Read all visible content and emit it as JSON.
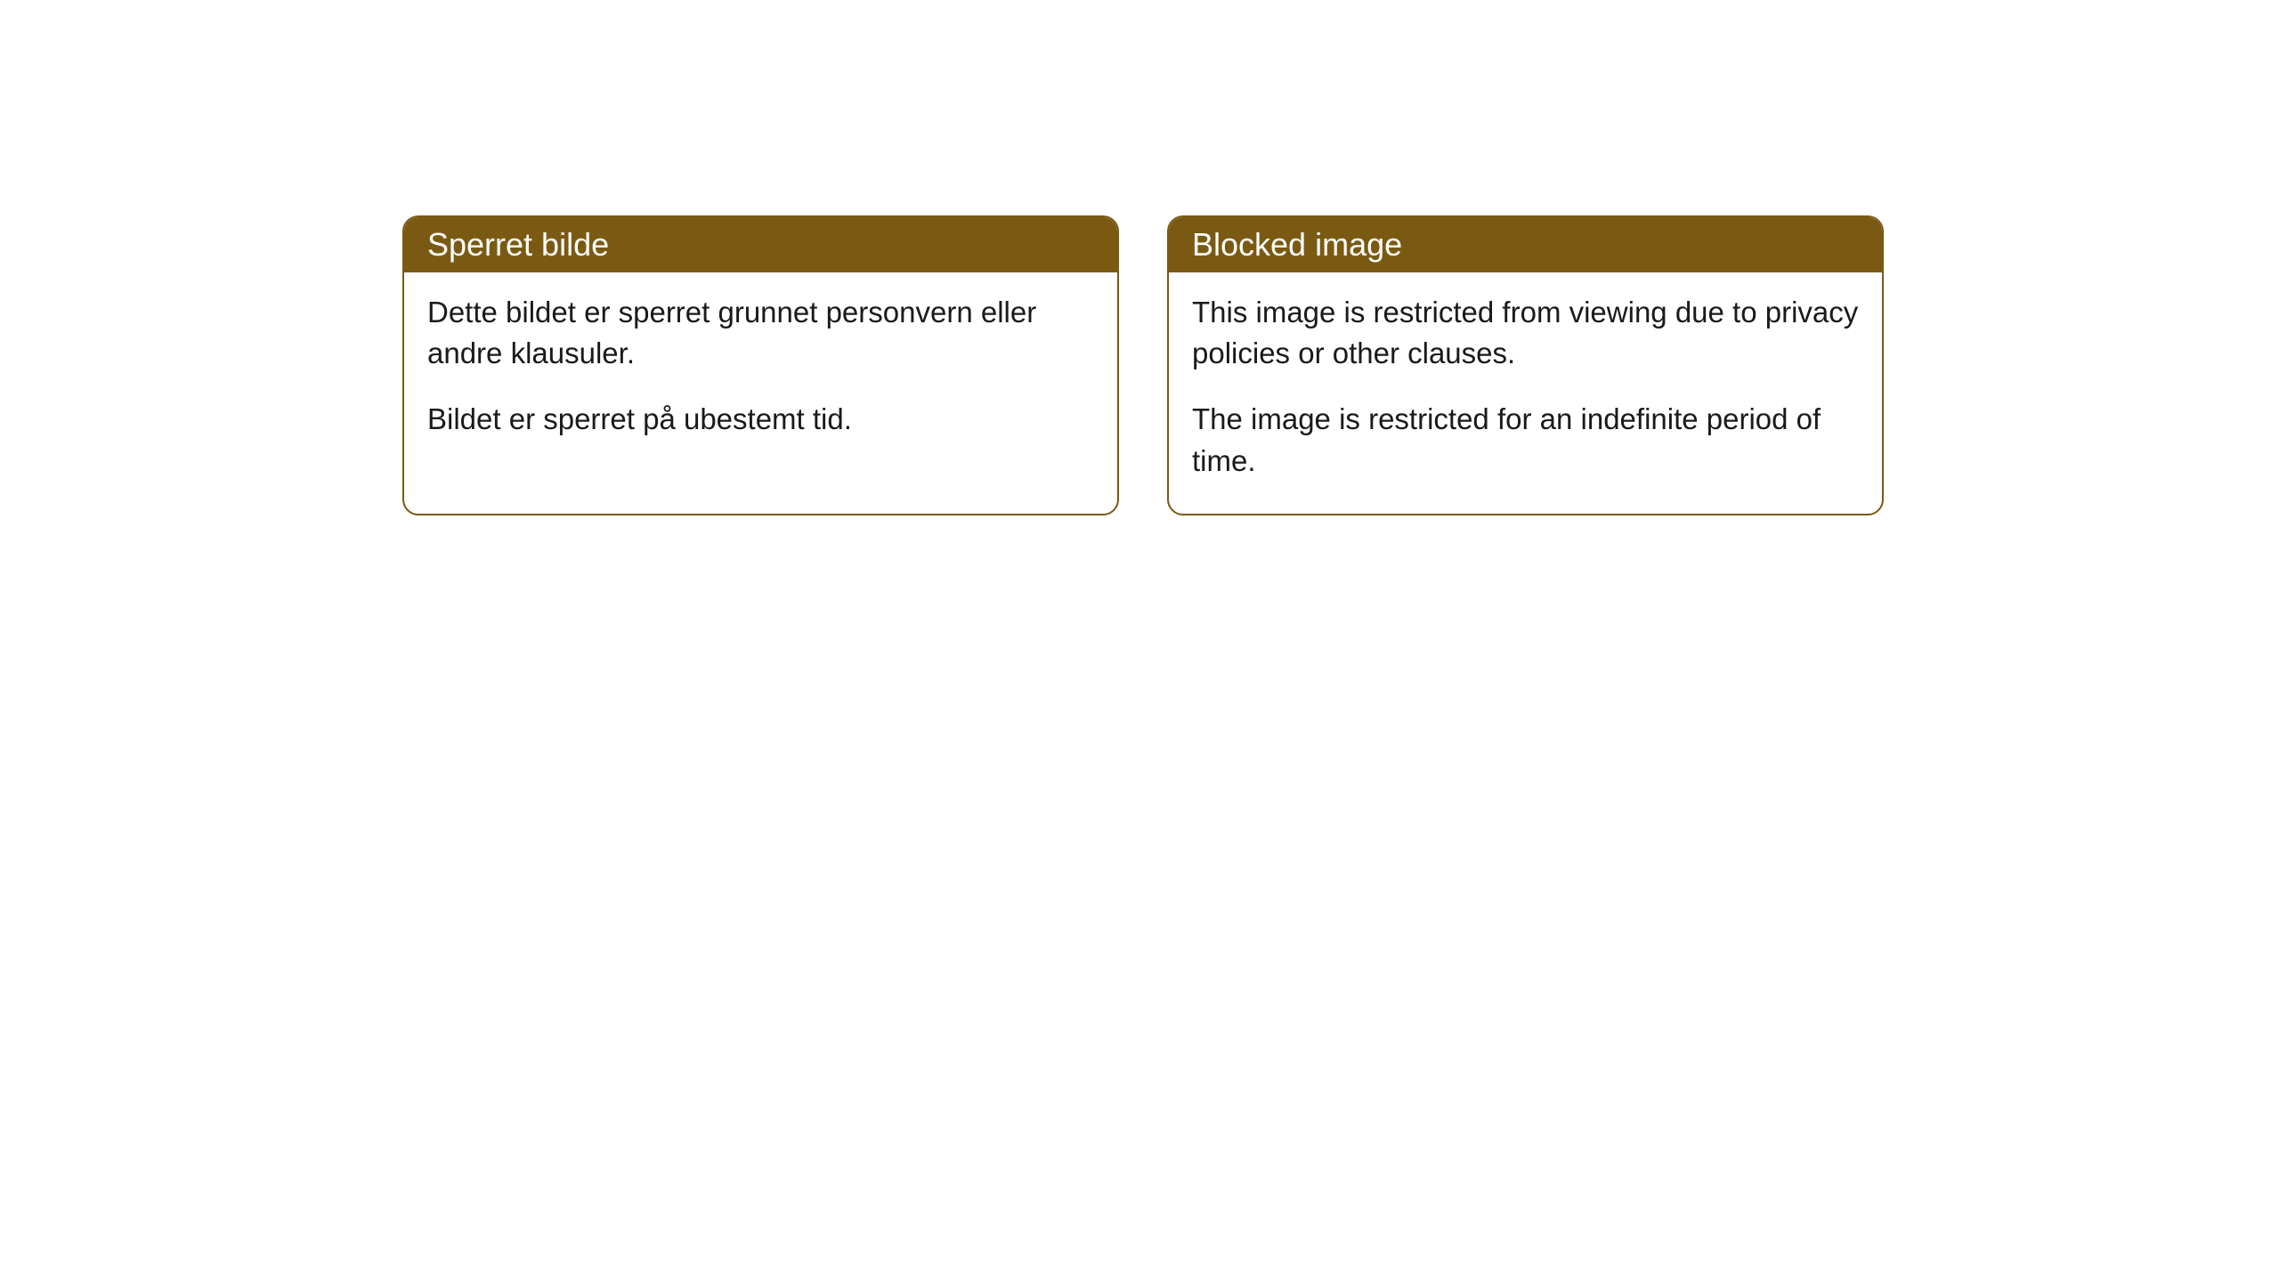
{
  "cards": [
    {
      "title": "Sperret bilde",
      "paragraph1": "Dette bildet er sperret grunnet personvern eller andre klausuler.",
      "paragraph2": "Bildet er sperret på ubestemt tid."
    },
    {
      "title": "Blocked image",
      "paragraph1": "This image is restricted from viewing due to privacy policies or other clauses.",
      "paragraph2": "The image is restricted for an indefinite period of time."
    }
  ],
  "style": {
    "header_bg_color": "#7a5a13",
    "header_text_color": "#ffffff",
    "border_color": "#7a5a13",
    "body_bg_color": "#ffffff",
    "body_text_color": "#1a1a1a",
    "border_radius": 18,
    "title_fontsize": 36,
    "body_fontsize": 33
  }
}
